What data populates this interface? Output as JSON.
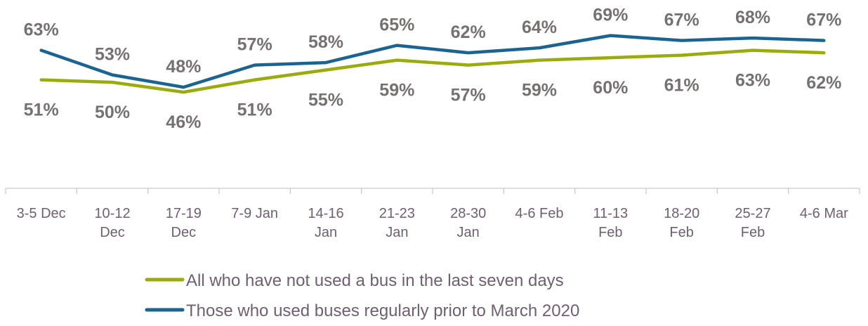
{
  "chart_data": {
    "type": "line",
    "categories": [
      [
        "3-5 Dec"
      ],
      [
        "10-12",
        "Dec"
      ],
      [
        "17-19",
        "Dec"
      ],
      [
        "7-9 Jan"
      ],
      [
        "14-16",
        "Jan"
      ],
      [
        "21-23",
        "Jan"
      ],
      [
        "28-30",
        "Jan"
      ],
      [
        "4-6 Feb"
      ],
      [
        "11-13",
        "Feb"
      ],
      [
        "18-20",
        "Feb"
      ],
      [
        "25-27",
        "Feb"
      ],
      [
        "4-6 Mar"
      ]
    ],
    "series": [
      {
        "name": "All who have not used a bus in the last seven days",
        "color": "#9aab0e",
        "values": [
          51,
          50,
          46,
          51,
          55,
          59,
          57,
          59,
          60,
          61,
          63,
          62
        ],
        "labels": [
          "51%",
          "50%",
          "46%",
          "51%",
          "55%",
          "59%",
          "57%",
          "59%",
          "60%",
          "61%",
          "63%",
          "62%"
        ],
        "label_position": "below"
      },
      {
        "name": "Those who used buses regularly prior to March 2020",
        "color": "#1b6491",
        "values": [
          63,
          53,
          48,
          57,
          58,
          65,
          62,
          64,
          69,
          67,
          68,
          67
        ],
        "labels": [
          "63%",
          "53%",
          "48%",
          "57%",
          "58%",
          "65%",
          "62%",
          "64%",
          "69%",
          "67%",
          "68%",
          "67%"
        ],
        "label_position": "above"
      }
    ],
    "title": "",
    "xlabel": "",
    "ylabel": "",
    "y_axis_visible": false,
    "grid": false,
    "legend_position": "bottom"
  }
}
